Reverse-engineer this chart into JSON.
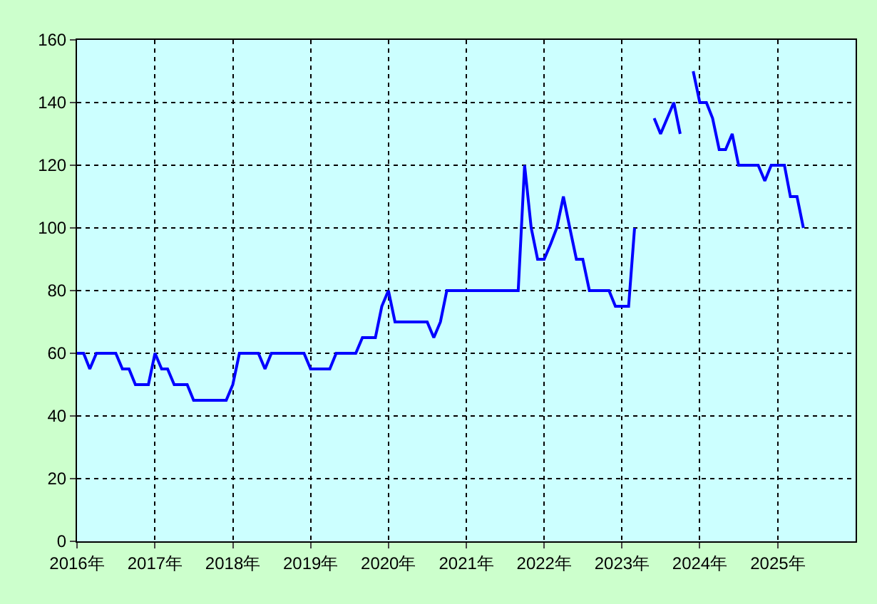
{
  "chart_data": {
    "type": "line",
    "x": [
      "2016-01",
      "2016-02",
      "2016-03",
      "2016-04",
      "2016-05",
      "2016-06",
      "2016-07",
      "2016-08",
      "2016-09",
      "2016-10",
      "2016-11",
      "2016-12",
      "2017-01",
      "2017-02",
      "2017-03",
      "2017-04",
      "2017-05",
      "2017-06",
      "2017-07",
      "2017-08",
      "2017-09",
      "2017-10",
      "2017-11",
      "2017-12",
      "2018-01",
      "2018-02",
      "2018-03",
      "2018-04",
      "2018-05",
      "2018-06",
      "2018-07",
      "2018-08",
      "2018-09",
      "2018-10",
      "2018-11",
      "2018-12",
      "2019-01",
      "2019-02",
      "2019-03",
      "2019-04",
      "2019-05",
      "2019-06",
      "2019-07",
      "2019-08",
      "2019-09",
      "2019-10",
      "2019-11",
      "2019-12",
      "2020-01",
      "2020-02",
      "2020-03",
      "2020-04",
      "2020-05",
      "2020-06",
      "2020-07",
      "2020-08",
      "2020-09",
      "2020-10",
      "2020-11",
      "2020-12",
      "2021-01",
      "2021-02",
      "2021-03",
      "2021-04",
      "2021-05",
      "2021-06",
      "2021-07",
      "2021-08",
      "2021-09",
      "2021-10",
      "2021-11",
      "2021-12",
      "2022-01",
      "2022-02",
      "2022-03",
      "2022-04",
      "2022-05",
      "2022-06",
      "2022-07",
      "2022-08",
      "2022-09",
      "2022-10",
      "2022-11",
      "2022-12",
      "2023-01",
      "2023-02",
      "2023-03",
      "2023-04",
      "2023-05",
      "2023-06",
      "2023-07",
      "2023-08",
      "2023-09",
      "2023-10",
      "2023-11",
      "2023-12",
      "2024-01",
      "2024-02",
      "2024-03",
      "2024-04",
      "2024-05",
      "2024-06",
      "2024-07",
      "2024-08",
      "2024-09",
      "2024-10",
      "2024-11",
      "2024-12",
      "2025-01",
      "2025-02",
      "2025-03",
      "2025-04",
      "2025-05"
    ],
    "series": [
      {
        "color": "#0000ff",
        "values": [
          60,
          60,
          55,
          60,
          60,
          60,
          60,
          55,
          55,
          50,
          50,
          50,
          60,
          55,
          55,
          50,
          50,
          50,
          45,
          45,
          45,
          45,
          45,
          45,
          50,
          60,
          60,
          60,
          60,
          55,
          60,
          60,
          60,
          60,
          60,
          60,
          55,
          55,
          55,
          55,
          60,
          60,
          60,
          60,
          65,
          65,
          65,
          75,
          80,
          70,
          70,
          70,
          70,
          70,
          70,
          65,
          70,
          80,
          80,
          80,
          80,
          80,
          80,
          80,
          80,
          80,
          80,
          80,
          80,
          120,
          100,
          90,
          90,
          95,
          100,
          110,
          100,
          90,
          90,
          80,
          80,
          80,
          80,
          75,
          75,
          75,
          100,
          null,
          null,
          135,
          130,
          135,
          140,
          130,
          null,
          150,
          140,
          140,
          135,
          125,
          125,
          130,
          120,
          120,
          120,
          120,
          115,
          120,
          120,
          120,
          110,
          110,
          100
        ]
      }
    ],
    "xlim": [
      "2016-01",
      "2026-01"
    ],
    "xticks": [
      {
        "value": "2016-01",
        "label": "2016年"
      },
      {
        "value": "2017-01",
        "label": "2017年"
      },
      {
        "value": "2018-01",
        "label": "2018年"
      },
      {
        "value": "2019-01",
        "label": "2019年"
      },
      {
        "value": "2020-01",
        "label": "2020年"
      },
      {
        "value": "2021-01",
        "label": "2021年"
      },
      {
        "value": "2022-01",
        "label": "2022年"
      },
      {
        "value": "2023-01",
        "label": "2023年"
      },
      {
        "value": "2024-01",
        "label": "2024年"
      },
      {
        "value": "2025-01",
        "label": "2025年"
      }
    ],
    "ylim": [
      0,
      160
    ],
    "yticks": [
      0,
      20,
      40,
      60,
      80,
      100,
      120,
      140,
      160
    ],
    "grid": true,
    "marker": "none",
    "line_style": "solid"
  }
}
